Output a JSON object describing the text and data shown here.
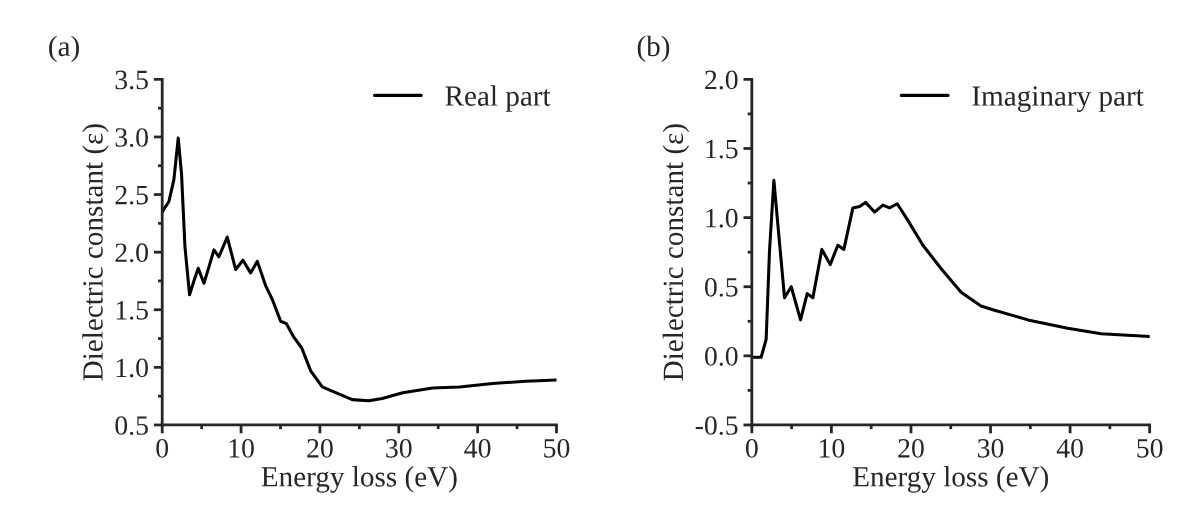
{
  "chart_data": [
    {
      "type": "line",
      "annotations": [
        "(a)"
      ],
      "xlabel": "Energy loss (eV)",
      "ylabel": "Dielectric constant (ε)",
      "xlim": [
        0,
        50
      ],
      "xticks": [
        0,
        10,
        20,
        30,
        40,
        50
      ],
      "ylim": [
        0.5,
        3.5
      ],
      "yticks": [
        0.5,
        {
          "value": 1,
          "label": "1.0"
        },
        1.5,
        {
          "value": 2,
          "label": "2.0"
        },
        2.5,
        {
          "value": 3,
          "label": "3.0"
        },
        3.5
      ],
      "grid": false,
      "legend": "top right",
      "marker": "none",
      "line_style": "solid",
      "series": [
        {
          "name": "Real part",
          "color": "#000000",
          "x": [
            0,
            0.85,
            1.48,
            2.03,
            2.45,
            2.88,
            3.47,
            4.02,
            4.57,
            5.29,
            5.92,
            6.56,
            7.19,
            8.25,
            9.31,
            10.24,
            11.21,
            12.06,
            13.11,
            13.96,
            15.02,
            15.74,
            16.71,
            17.68,
            18.83,
            20.3,
            22.0,
            24.1,
            26.2,
            27.9,
            30.5,
            34.3,
            37.7,
            41.9,
            46.1,
            50
          ],
          "values": [
            2.35,
            2.44,
            2.63,
            2.99,
            2.68,
            2.05,
            1.63,
            1.75,
            1.86,
            1.73,
            1.87,
            2.02,
            1.96,
            2.13,
            1.85,
            1.93,
            1.82,
            1.92,
            1.71,
            1.59,
            1.4,
            1.38,
            1.26,
            1.17,
            0.97,
            0.83,
            0.78,
            0.72,
            0.71,
            0.73,
            0.78,
            0.82,
            0.83,
            0.86,
            0.88,
            0.89
          ]
        }
      ]
    },
    {
      "type": "line",
      "annotations": [
        "(b)"
      ],
      "xlabel": "Energy loss (eV)",
      "ylabel": "Dielectric constant (ε)",
      "xlim": [
        0,
        50
      ],
      "xticks": [
        0,
        10,
        20,
        30,
        40,
        50
      ],
      "ylim": [
        -0.5,
        2.0
      ],
      "yticks": [
        {
          "value": -0.5,
          "label": "-0.5"
        },
        {
          "value": 0,
          "label": "0.0"
        },
        0.5,
        {
          "value": 1,
          "label": "1.0"
        },
        1.5,
        {
          "value": 2,
          "label": "2.0"
        }
      ],
      "grid": false,
      "legend": "top right",
      "marker": "none",
      "line_style": "solid",
      "series": [
        {
          "name": "Imaginary part",
          "color": "#000000",
          "x": [
            0,
            1.17,
            1.8,
            2.22,
            2.77,
            3.27,
            4.11,
            4.95,
            6.12,
            6.96,
            7.67,
            8.8,
            9.85,
            10.81,
            11.57,
            12.7,
            13.54,
            14.29,
            15.42,
            16.47,
            17.3,
            18.27,
            19.61,
            21.5,
            23.8,
            26.3,
            28.8,
            30.5,
            34.7,
            39.7,
            43.9,
            50
          ],
          "values": [
            -0.01,
            -0.01,
            0.12,
            0.76,
            1.27,
            0.95,
            0.42,
            0.5,
            0.26,
            0.45,
            0.42,
            0.77,
            0.66,
            0.8,
            0.77,
            1.07,
            1.08,
            1.11,
            1.04,
            1.09,
            1.07,
            1.1,
            0.98,
            0.8,
            0.63,
            0.46,
            0.36,
            0.33,
            0.26,
            0.2,
            0.16,
            0.14
          ]
        }
      ]
    }
  ]
}
